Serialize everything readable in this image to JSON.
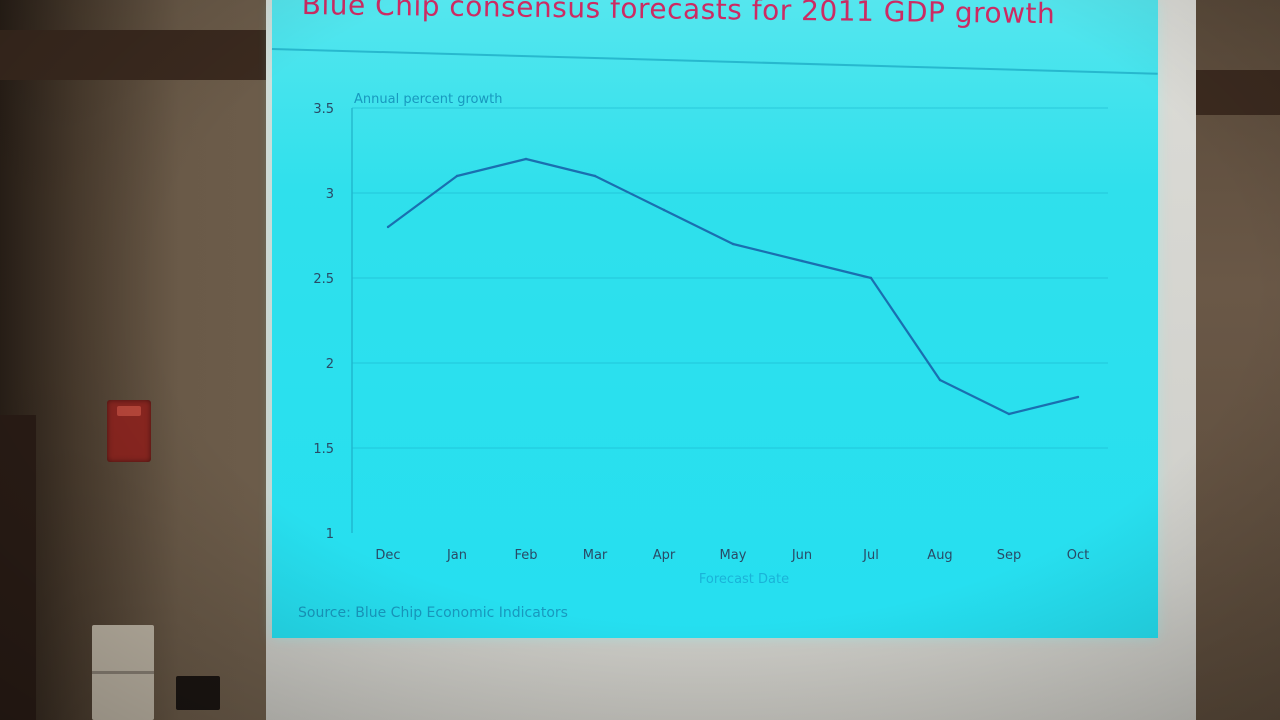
{
  "slide": {
    "title": "Blue Chip consensus forecasts for 2011 GDP growth",
    "source": "Source: Blue Chip Economic Indicators"
  },
  "colors": {
    "slide_bg": "#2fe0ec",
    "title": "#cc2b63",
    "line": "#1a6fb0",
    "label": "#1899bf"
  },
  "chart_data": {
    "type": "line",
    "title": "Blue Chip consensus forecasts for 2011 GDP growth",
    "ylabel": "Annual percent growth",
    "xlabel": "Forecast Date",
    "categories": [
      "Dec",
      "Jan",
      "Feb",
      "Mar",
      "Apr",
      "May",
      "Jun",
      "Jul",
      "Aug",
      "Sep",
      "Oct"
    ],
    "values": [
      2.8,
      3.1,
      3.2,
      3.1,
      2.9,
      2.7,
      2.6,
      2.5,
      1.9,
      1.7,
      1.8
    ],
    "yticks": [
      "3.5",
      "3",
      "2.5",
      "2",
      "1.5",
      "1"
    ],
    "ylim": [
      1,
      3.5
    ],
    "grid": true
  }
}
